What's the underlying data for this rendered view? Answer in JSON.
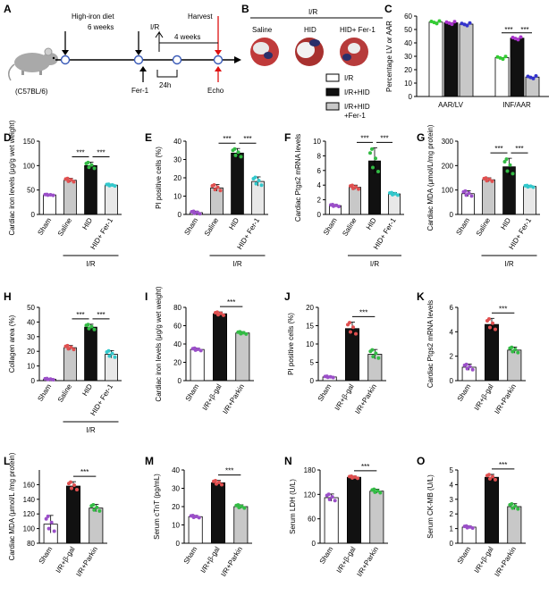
{
  "colors": {
    "white": "#ffffff",
    "black": "#111111",
    "gray": "#c8c8c8",
    "light": "#e8e8e8"
  },
  "panelA": {
    "label": "A",
    "diet_text": "High-iron diet",
    "weeks6_text": "6 weeks",
    "ir_text": "I/R",
    "harvest_text": "Harvest",
    "weeks4_text": "4 weeks",
    "h24_text": "24h",
    "fer1_text": "Fer-1",
    "echo_text": "Echo",
    "mouse_text": "(C57BL/6)"
  },
  "panelB": {
    "label": "B",
    "top_text": "I/R",
    "hearts": [
      "Saline",
      "HID",
      "HID+ Fer-1"
    ],
    "legend": [
      "I/R",
      "I/R+HID",
      "I/R+HID",
      "+Fer-1"
    ]
  },
  "chart_data": [
    {
      "id": "C",
      "type": "bar",
      "ylabel": "Percentage LV or AAR",
      "ylim": [
        0,
        60
      ],
      "yticks": [
        0,
        10,
        20,
        30,
        40,
        50,
        60
      ],
      "categories": [
        "AAR/LV",
        "INF/AAR"
      ],
      "series": [
        {
          "name": "I/R",
          "values": [
            55.5,
            29
          ]
        },
        {
          "name": "I/R+HID",
          "values": [
            55,
            43.5
          ]
        },
        {
          "name": "I/R+HID+Fer-1",
          "values": [
            54,
            14.5
          ]
        }
      ],
      "sig": [
        "***",
        "***"
      ]
    },
    {
      "id": "D",
      "type": "bar",
      "ylabel": "Cardiac iron levels (μg/g wet weight)",
      "ylim": [
        0,
        150
      ],
      "yticks": [
        0,
        50,
        100,
        150
      ],
      "categories": [
        "Sham",
        "Saline",
        "HID",
        "HID+ Fer-1"
      ],
      "values": [
        40,
        70,
        100,
        60
      ],
      "errors": [
        1,
        4,
        7,
        2
      ],
      "sig": [
        "***",
        "***"
      ],
      "group": "I/R"
    },
    {
      "id": "E",
      "type": "bar",
      "ylabel": "PI positive cells (%)",
      "ylim": [
        0,
        40
      ],
      "yticks": [
        0,
        10,
        20,
        30,
        40
      ],
      "categories": [
        "Sham",
        "Saline",
        "HID",
        "HID+ Fer-1"
      ],
      "values": [
        1,
        14.5,
        33.5,
        18
      ],
      "errors": [
        0.8,
        1.8,
        2.5,
        2.5
      ],
      "sig": [
        "***",
        "***"
      ],
      "group": "I/R"
    },
    {
      "id": "F",
      "type": "bar",
      "ylabel": "Cardiac Ptgs2 mRNA levels",
      "ylim": [
        0,
        10
      ],
      "yticks": [
        0,
        2,
        4,
        6,
        8,
        10
      ],
      "categories": [
        "Sham",
        "Saline",
        "HID",
        "HID+ Fer-1"
      ],
      "values": [
        1.2,
        3.7,
        7.3,
        2.8
      ],
      "errors": [
        0.15,
        0.3,
        1.8,
        0.2
      ],
      "sig": [
        "***",
        "***"
      ],
      "group": "I/R"
    },
    {
      "id": "G",
      "type": "bar",
      "ylabel": "Cardiac MDA (μmol/L/mg protein)",
      "ylim": [
        0,
        300
      ],
      "yticks": [
        0,
        100,
        200,
        300
      ],
      "categories": [
        "Sham",
        "Saline",
        "HID",
        "HID+ Fer-1"
      ],
      "values": [
        85,
        142,
        195,
        115
      ],
      "errors": [
        12,
        8,
        35,
        4
      ],
      "sig": [
        "***",
        "***"
      ],
      "group": "I/R"
    },
    {
      "id": "H",
      "type": "bar",
      "ylabel": "Collagen area (%)",
      "ylim": [
        0,
        50
      ],
      "yticks": [
        0,
        10,
        20,
        30,
        40,
        50
      ],
      "categories": [
        "Sham",
        "Saline",
        "HID",
        "HID+ Fer-1"
      ],
      "values": [
        1,
        22.5,
        36.5,
        18
      ],
      "errors": [
        0.5,
        1.5,
        2,
        2.5
      ],
      "sig": [
        "***",
        "***"
      ],
      "group": "I/R"
    },
    {
      "id": "I",
      "type": "bar",
      "ylabel": "Cardiac iron levels (μg/g wet weight)",
      "ylim": [
        0,
        80
      ],
      "yticks": [
        0,
        20,
        40,
        60,
        80
      ],
      "categories": [
        "Sham",
        "I/R+β-gal",
        "I/R+Parkin"
      ],
      "values": [
        34,
        73,
        52
      ],
      "errors": [
        1.5,
        2,
        1.5
      ],
      "sig": [
        "***"
      ]
    },
    {
      "id": "J",
      "type": "bar",
      "ylabel": "PI positive cells (%)",
      "ylim": [
        0,
        20
      ],
      "yticks": [
        0,
        5,
        10,
        15,
        20
      ],
      "categories": [
        "Sham",
        "I/R+β-gal",
        "I/R+Parkin"
      ],
      "values": [
        1,
        14.2,
        7.2
      ],
      "errors": [
        0.2,
        1.8,
        1.3
      ],
      "sig": [
        "***"
      ]
    },
    {
      "id": "K",
      "type": "bar",
      "ylabel": "Cardiac Ptgs2 mRNA levels",
      "ylim": [
        0,
        6
      ],
      "yticks": [
        0,
        2,
        4,
        6
      ],
      "categories": [
        "Sham",
        "I/R+β-gal",
        "I/R+Parkin"
      ],
      "values": [
        1.1,
        4.6,
        2.5
      ],
      "errors": [
        0.25,
        0.5,
        0.25
      ],
      "sig": [
        "***"
      ]
    },
    {
      "id": "L",
      "type": "bar",
      "ylabel": "Cardiac MDA (μmol/L /mg protein)",
      "ylim": [
        80,
        180
      ],
      "yticks": [
        80,
        100,
        120,
        140,
        160
      ],
      "categories": [
        "Sham",
        "I/R+β-gal",
        "I/R+Parkin"
      ],
      "values": [
        106,
        158,
        128
      ],
      "errors": [
        12,
        6,
        5
      ],
      "sig": [
        "***"
      ]
    },
    {
      "id": "M",
      "type": "bar",
      "ylabel": "Serum cTnT (pg/mL)",
      "ylim": [
        0,
        40
      ],
      "yticks": [
        0,
        10,
        20,
        30,
        40
      ],
      "categories": [
        "Sham",
        "I/R+β-gal",
        "I/R+Parkin"
      ],
      "values": [
        14.5,
        33,
        20
      ],
      "errors": [
        0.7,
        1.3,
        1
      ],
      "sig": [
        "***"
      ]
    },
    {
      "id": "N",
      "type": "bar",
      "ylabel": "Serum LDH (U/L)",
      "ylim": [
        0,
        180
      ],
      "yticks": [
        0,
        60,
        120,
        180
      ],
      "categories": [
        "Sham",
        "I/R+β-gal",
        "I/R+Parkin"
      ],
      "values": [
        112,
        162,
        128
      ],
      "errors": [
        9,
        3,
        5
      ],
      "sig": [
        "***"
      ]
    },
    {
      "id": "O",
      "type": "bar",
      "ylabel": "Serum CK-MB (U/L)",
      "ylim": [
        0,
        5
      ],
      "yticks": [
        0,
        1,
        2,
        3,
        4,
        5
      ],
      "categories": [
        "Sham",
        "I/R+β-gal",
        "I/R+Parkin"
      ],
      "values": [
        1.1,
        4.5,
        2.5
      ],
      "errors": [
        0.08,
        0.2,
        0.2
      ],
      "sig": [
        "***"
      ]
    }
  ]
}
